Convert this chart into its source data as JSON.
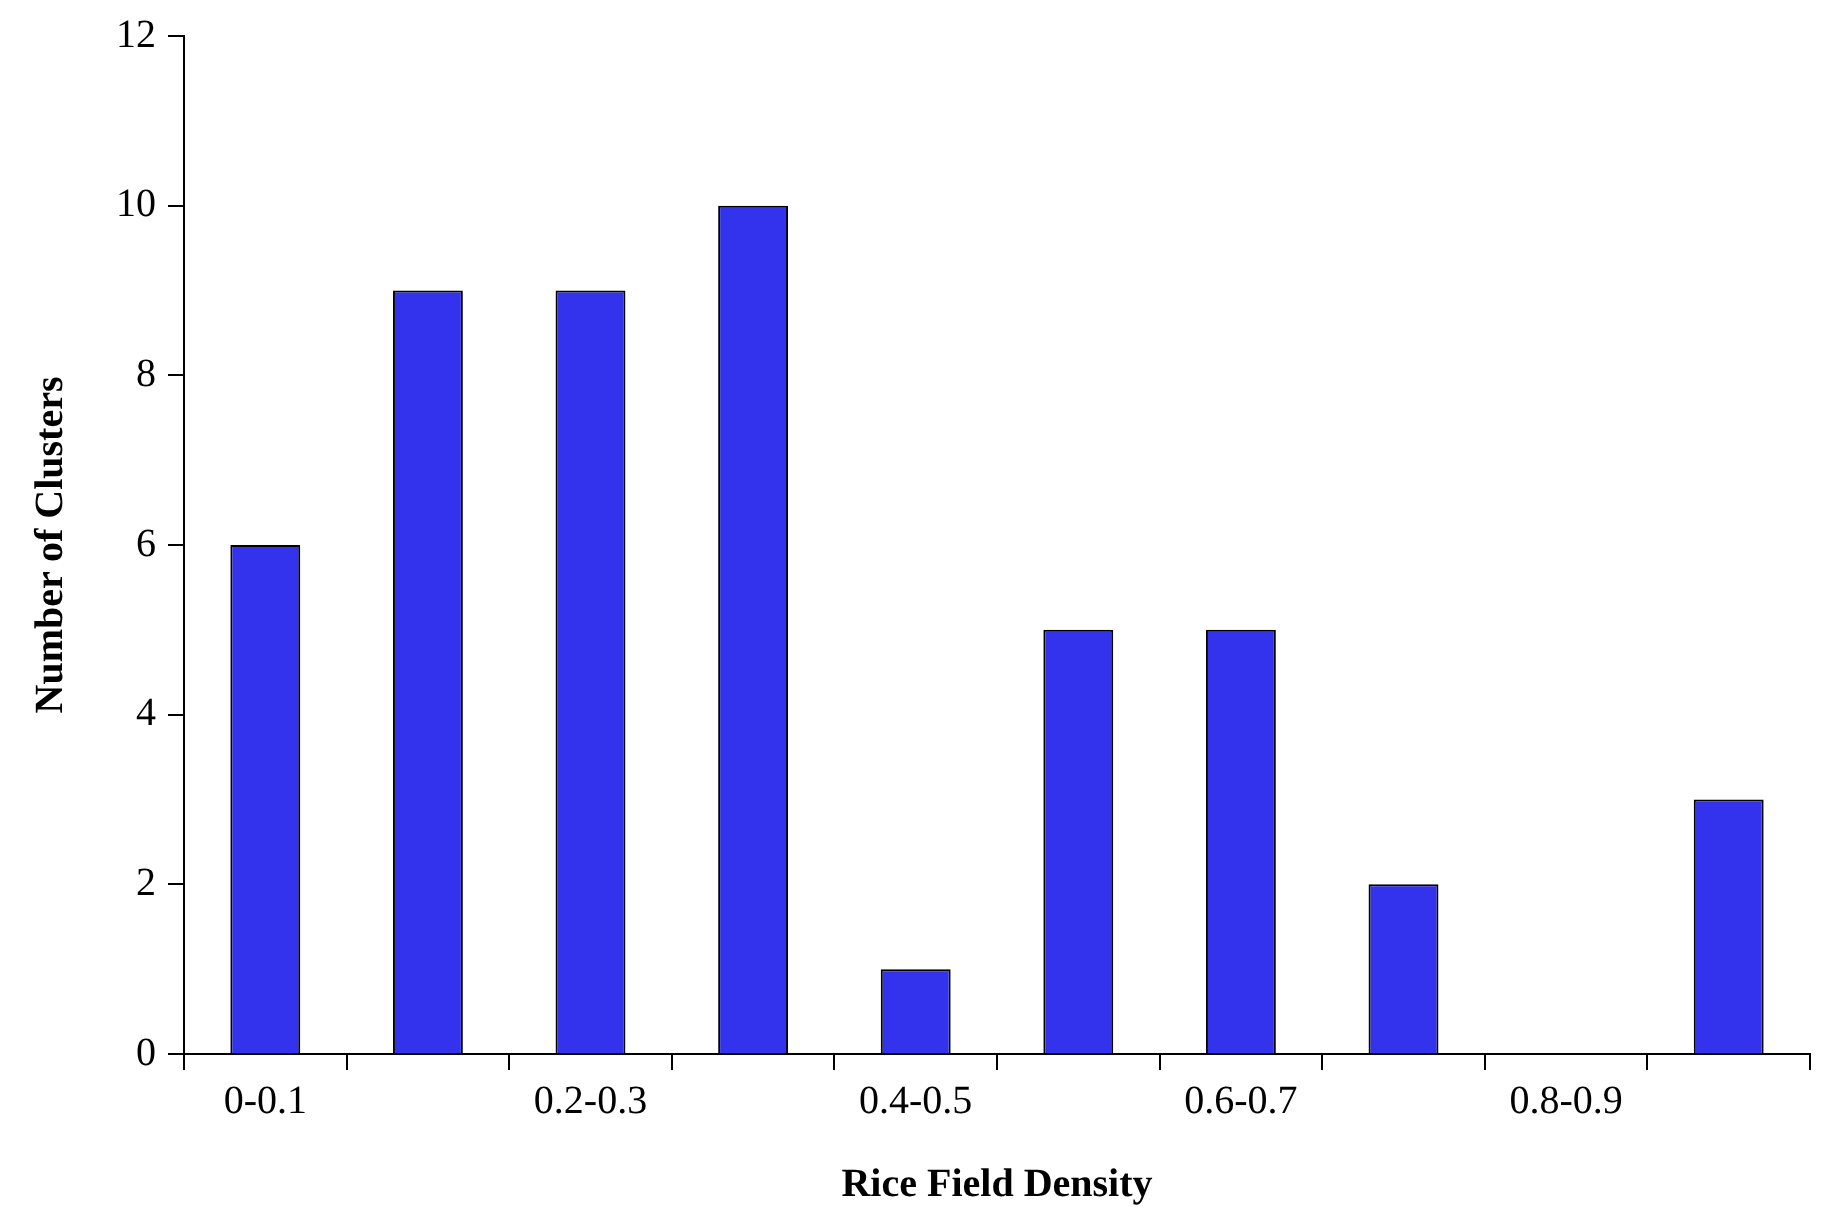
{
  "chart_data": {
    "type": "bar",
    "xlabel": "Rice Field Density",
    "ylabel": "Number of Clusters",
    "categories": [
      "0-0.1",
      null,
      "0.2-0.3",
      null,
      "0.4-0.5",
      null,
      "0.6-0.7",
      null,
      "0.8-0.9",
      null
    ],
    "values": [
      6,
      9,
      9,
      10,
      1,
      5,
      5,
      2,
      0,
      3
    ],
    "color": "#3333ee",
    "ylim": [
      0,
      12
    ],
    "yticks": [
      0,
      2,
      4,
      6,
      8,
      10,
      12
    ]
  }
}
